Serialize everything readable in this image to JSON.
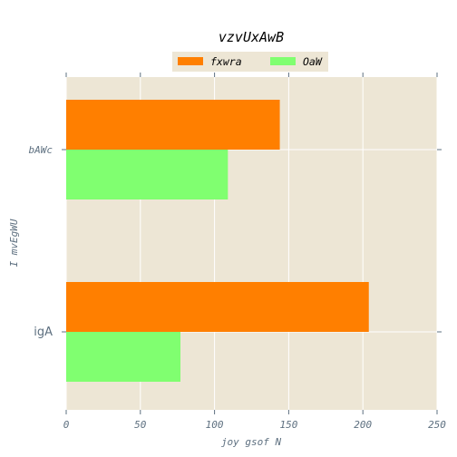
{
  "chart_data": {
    "type": "bar",
    "orientation": "horizontal",
    "title": "vzvUxAwB",
    "xlabel": "joy gsof N",
    "ylabel": "I  mvEgWU",
    "categories": [
      "bAWc",
      "igA"
    ],
    "series": [
      {
        "name": "fxwra",
        "values": [
          144,
          204
        ],
        "color": "#ff7f00"
      },
      {
        "name": "OaW",
        "values": [
          109,
          77
        ],
        "color": "#80ff70"
      }
    ],
    "xlim": [
      0,
      250
    ],
    "xticks": [
      "0",
      "50",
      "100",
      "150",
      "200",
      "250"
    ],
    "grid": true,
    "legend_position": "top-center",
    "background": "#ede6d5"
  }
}
